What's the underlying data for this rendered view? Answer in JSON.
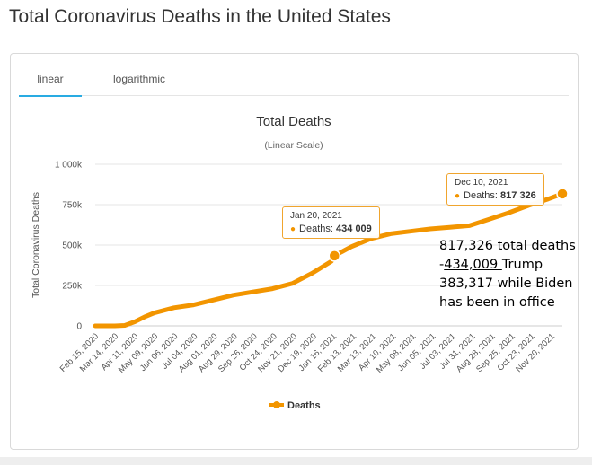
{
  "page": {
    "title": "Total Coronavirus Deaths in the United States"
  },
  "tabs": [
    {
      "label": "linear",
      "active": true
    },
    {
      "label": "logarithmic",
      "active": false
    }
  ],
  "annotation": {
    "line1": "817,326 total deaths",
    "line2_minus": "-",
    "line2_value": "434,009 ",
    "line2_rest": "Trump",
    "line3": "383,317 while Biden",
    "line4": "has been in office"
  },
  "tooltips": [
    {
      "date": "Jan 20, 2021",
      "label": "Deaths:",
      "value": "434 009"
    },
    {
      "date": "Dec 10, 2021",
      "label": "Deaths:",
      "value": "817 326"
    }
  ],
  "colors": {
    "series": "#f29500",
    "tab_active": "#29abe2",
    "grid": "#e6e6e6",
    "title": "#333333"
  },
  "chart_data": {
    "type": "line",
    "title": "Total Deaths",
    "subtitle": "(Linear Scale)",
    "ylabel": "Total Coronavirus Deaths",
    "xlabel": "",
    "ylim": [
      0,
      1000000
    ],
    "yticks": [
      0,
      250000,
      500000,
      750000,
      1000000
    ],
    "ytick_labels": [
      "0",
      "250k",
      "500k",
      "750k",
      "1 000k"
    ],
    "xtick_labels": [
      "Feb 15, 2020",
      "Mar 14, 2020",
      "Apr 11, 2020",
      "May 09, 2020",
      "Jun 06, 2020",
      "Jul 04, 2020",
      "Aug 01, 2020",
      "Aug 29, 2020",
      "Sep 26, 2020",
      "Oct 24, 2020",
      "Nov 21, 2020",
      "Dec 19, 2020",
      "Jan 16, 2021",
      "Feb 13, 2021",
      "Mar 13, 2021",
      "Apr 10, 2021",
      "May 08, 2021",
      "Jun 05, 2021",
      "Jul 03, 2021",
      "Jul 31, 2021",
      "Aug 28, 2021",
      "Sep 25, 2021",
      "Oct 23, 2021",
      "Nov 20, 2021"
    ],
    "grid": true,
    "legend_position": "bottom-center",
    "series": [
      {
        "name": "Deaths",
        "x": [
          "2020-02-15",
          "2020-03-14",
          "2020-03-28",
          "2020-04-11",
          "2020-04-25",
          "2020-05-09",
          "2020-06-06",
          "2020-07-04",
          "2020-08-01",
          "2020-08-29",
          "2020-09-26",
          "2020-10-24",
          "2020-11-21",
          "2020-12-19",
          "2021-01-16",
          "2021-01-20",
          "2021-02-13",
          "2021-03-13",
          "2021-04-10",
          "2021-05-08",
          "2021-06-05",
          "2021-07-03",
          "2021-07-31",
          "2021-08-28",
          "2021-09-25",
          "2021-10-23",
          "2021-11-20",
          "2021-12-10"
        ],
        "y": [
          0,
          100,
          3000,
          25000,
          55000,
          80000,
          112000,
          130000,
          160000,
          190000,
          210000,
          230000,
          262000,
          325000,
          400000,
          434009,
          490000,
          540000,
          570000,
          585000,
          600000,
          610000,
          620000,
          660000,
          700000,
          745000,
          785000,
          817326
        ]
      }
    ],
    "highlighted_points": [
      {
        "x": "2021-01-20",
        "y": 434009
      },
      {
        "x": "2021-12-10",
        "y": 817326
      }
    ]
  }
}
